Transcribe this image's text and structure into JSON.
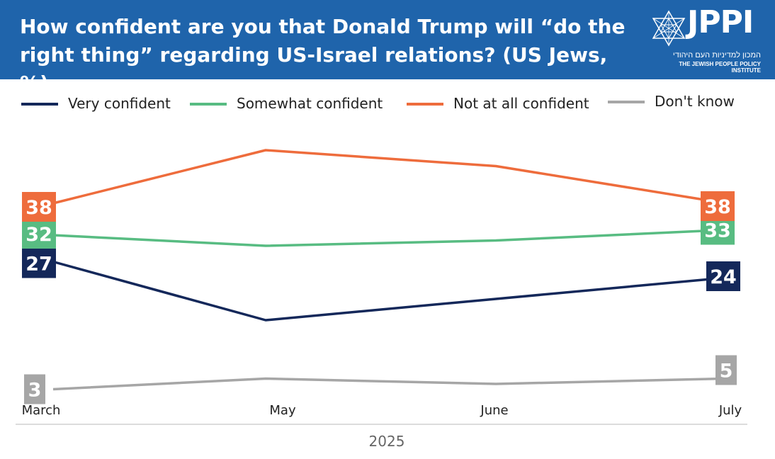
{
  "header": {
    "title_line1": "How confident are you that Donald Trump will “do the",
    "title_line2": "right thing” regarding US-Israel relations? (US Jews, %)",
    "background": "#1f64ab"
  },
  "logo": {
    "text": "JPPI",
    "hebrew": "המכון למדיניות העם היהודי",
    "english": "THE JEWISH PEOPLE POLICY INSTITUTE"
  },
  "chart_data": {
    "type": "line",
    "title": "How confident are you that Donald Trump will “do the right thing” regarding US-Israel relations? (US Jews, %)",
    "categories": [
      "March",
      "May",
      "June",
      "July"
    ],
    "xlabel": "2025",
    "ylabel": "",
    "legend_position": "top",
    "grid": false,
    "series": [
      {
        "name": "Very confident",
        "color": "#14285a",
        "values": [
          27,
          16,
          20,
          24
        ],
        "labeled": [
          0,
          3
        ]
      },
      {
        "name": "Somewhat confident",
        "color": "#58bc82",
        "values": [
          32,
          30,
          31,
          33
        ],
        "labeled": [
          0,
          3
        ]
      },
      {
        "name": "Not at all confident",
        "color": "#ee6c3c",
        "values": [
          38,
          48,
          45,
          38
        ],
        "labeled": [
          0,
          3
        ]
      },
      {
        "name": "Don't know",
        "color": "#a6a6a6",
        "values": [
          3,
          5,
          4,
          5
        ],
        "labeled": [
          0,
          3
        ]
      }
    ]
  }
}
